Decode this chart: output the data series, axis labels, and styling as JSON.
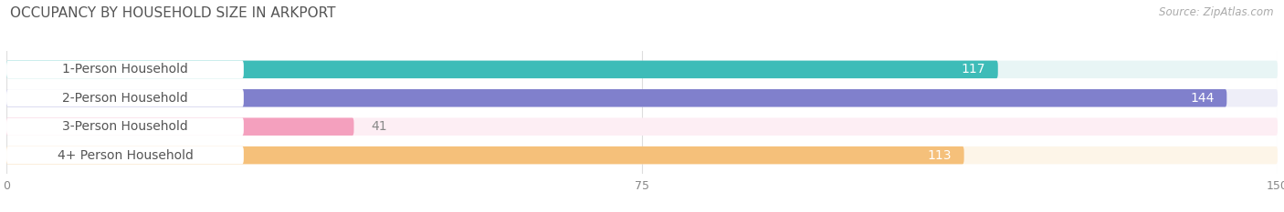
{
  "title": "OCCUPANCY BY HOUSEHOLD SIZE IN ARKPORT",
  "source": "Source: ZipAtlas.com",
  "categories": [
    "1-Person Household",
    "2-Person Household",
    "3-Person Household",
    "4+ Person Household"
  ],
  "values": [
    117,
    144,
    41,
    113
  ],
  "bar_colors": [
    "#3DBCB8",
    "#8080CC",
    "#F4A0BE",
    "#F5C07A"
  ],
  "bg_colors": [
    "#E8F5F5",
    "#EEEEF8",
    "#FDEEF4",
    "#FDF5E8"
  ],
  "xlim": [
    0,
    150
  ],
  "xticks": [
    0,
    75,
    150
  ],
  "label_color": "#555555",
  "value_color_white": "#FFFFFF",
  "value_color_dark": "#888888",
  "title_color": "#555555",
  "bar_height": 0.62,
  "label_fontsize": 10,
  "value_fontsize": 10,
  "title_fontsize": 11
}
